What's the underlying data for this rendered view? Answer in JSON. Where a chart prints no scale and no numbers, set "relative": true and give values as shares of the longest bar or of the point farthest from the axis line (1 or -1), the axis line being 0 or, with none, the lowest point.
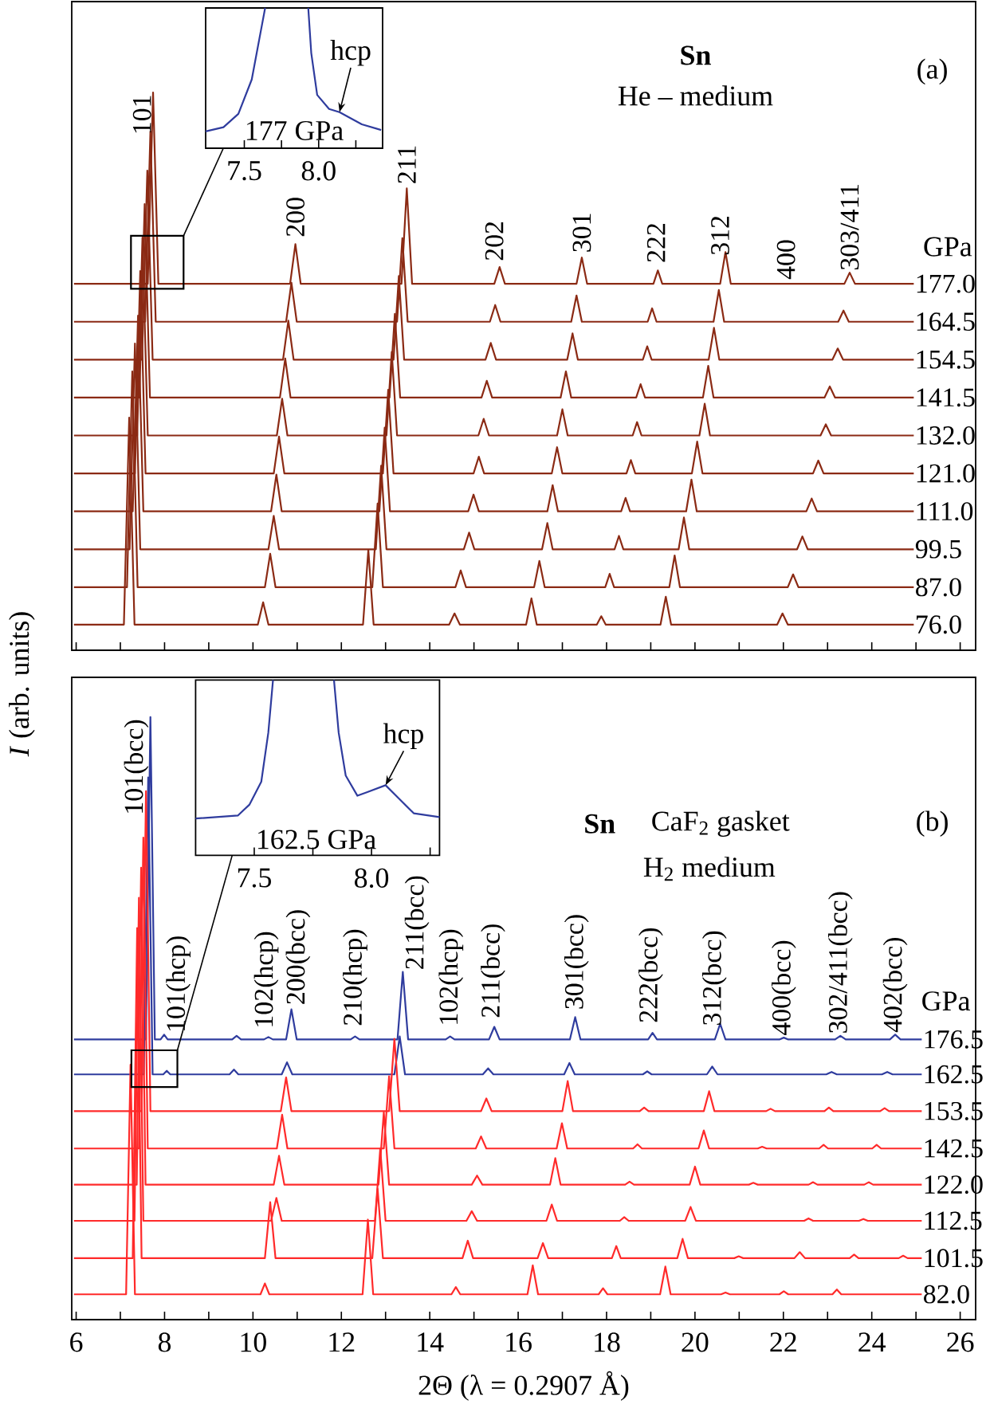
{
  "chart_data": [
    {
      "type": "line",
      "title": "Sn",
      "subtitle": "He – medium",
      "relative": true,
      "xlim": [
        5.9,
        26.35
      ],
      "xticks": [
        6,
        {
          "value": 7,
          "label": null
        },
        8,
        {
          "value": 9,
          "label": null
        },
        10,
        {
          "value": 11,
          "label": null
        },
        12,
        {
          "value": 13,
          "label": null
        },
        14,
        {
          "value": 15,
          "label": null
        },
        16,
        {
          "value": 17,
          "label": null
        },
        18,
        {
          "value": 19,
          "label": null
        },
        20,
        {
          "value": 21,
          "label": null
        },
        22,
        {
          "value": 23,
          "label": null
        },
        24,
        {
          "value": 25,
          "label": null
        },
        26
      ],
      "tick_labels": false,
      "annotations": [
        "(a)",
        "GPa",
        {
          "text": "101",
          "x": 7.74,
          "y": 1.0
        },
        {
          "text": "200",
          "x": 10.96,
          "y": 0.737
        },
        {
          "text": "211",
          "x": 13.48,
          "y": 0.832
        },
        {
          "text": "202",
          "x": 15.46,
          "y": 0.694
        },
        {
          "text": "301",
          "x": 17.44,
          "y": 0.709
        },
        {
          "text": "222",
          "x": 19.12,
          "y": 0.691
        },
        {
          "text": "312",
          "x": 20.57,
          "y": 0.704
        },
        {
          "text": "400",
          "x": 22.06,
          "y": 0.661
        },
        {
          "text": "303/411",
          "x": 23.5,
          "y": 0.677
        }
      ],
      "series": [
        {
          "name": "177.0",
          "color": "#8b2a14",
          "x": [
            5.95,
            7.62,
            7.74,
            7.86,
            10.84,
            10.96,
            11.08,
            13.36,
            13.48,
            13.6,
            15.46,
            15.58,
            15.7,
            17.32,
            17.44,
            17.56,
            19.06,
            19.16,
            19.26,
            20.57,
            20.69,
            20.81,
            23.38,
            23.5,
            23.62,
            24.95
          ],
          "values": [
            0.657,
            0.657,
            1.0,
            0.657,
            0.657,
            0.728,
            0.657,
            0.657,
            0.828,
            0.657,
            0.657,
            0.687,
            0.657,
            0.657,
            0.704,
            0.657,
            0.657,
            0.681,
            0.657,
            0.657,
            0.714,
            0.657,
            0.657,
            0.677,
            0.657,
            0.657
          ]
        },
        {
          "name": "164.5",
          "color": "#8b2a14",
          "x": [
            5.95,
            7.56,
            7.68,
            7.8,
            10.75,
            10.87,
            10.99,
            13.26,
            13.38,
            13.5,
            15.36,
            15.48,
            15.6,
            17.2,
            17.32,
            17.44,
            18.93,
            19.03,
            19.13,
            20.42,
            20.54,
            20.66,
            23.24,
            23.36,
            23.48,
            24.95
          ],
          "values": [
            0.589,
            0.589,
            0.93,
            0.589,
            0.589,
            0.659,
            0.589,
            0.589,
            0.739,
            0.589,
            0.589,
            0.619,
            0.589,
            0.589,
            0.636,
            0.589,
            0.589,
            0.613,
            0.589,
            0.589,
            0.646,
            0.589,
            0.589,
            0.609,
            0.589,
            0.589
          ]
        },
        {
          "name": "154.5",
          "color": "#8b2a14",
          "x": [
            5.95,
            7.49,
            7.61,
            7.73,
            10.68,
            10.8,
            10.92,
            13.18,
            13.3,
            13.42,
            15.26,
            15.38,
            15.5,
            17.11,
            17.23,
            17.35,
            18.82,
            18.92,
            19.02,
            20.31,
            20.43,
            20.55,
            23.11,
            23.23,
            23.35,
            24.95
          ],
          "values": [
            0.521,
            0.521,
            0.86,
            0.521,
            0.521,
            0.591,
            0.521,
            0.521,
            0.671,
            0.521,
            0.521,
            0.551,
            0.521,
            0.521,
            0.568,
            0.521,
            0.521,
            0.545,
            0.521,
            0.521,
            0.578,
            0.521,
            0.521,
            0.541,
            0.521,
            0.521
          ]
        },
        {
          "name": "141.5",
          "color": "#8b2a14",
          "x": [
            5.95,
            7.43,
            7.55,
            7.67,
            10.61,
            10.73,
            10.85,
            13.09,
            13.21,
            13.33,
            15.17,
            15.29,
            15.41,
            16.96,
            17.08,
            17.2,
            18.67,
            18.77,
            18.87,
            20.18,
            20.3,
            20.42,
            22.93,
            23.05,
            23.17,
            24.95
          ],
          "values": [
            0.453,
            0.453,
            0.8,
            0.453,
            0.453,
            0.523,
            0.453,
            0.453,
            0.603,
            0.453,
            0.453,
            0.483,
            0.453,
            0.453,
            0.5,
            0.453,
            0.453,
            0.477,
            0.453,
            0.453,
            0.51,
            0.453,
            0.453,
            0.473,
            0.453,
            0.453
          ]
        },
        {
          "name": "132.0",
          "color": "#8b2a14",
          "x": [
            5.95,
            7.38,
            7.5,
            7.62,
            10.54,
            10.66,
            10.78,
            13.02,
            13.14,
            13.26,
            15.1,
            15.22,
            15.34,
            16.88,
            17.0,
            17.12,
            18.59,
            18.69,
            18.79,
            20.1,
            20.22,
            20.34,
            22.84,
            22.96,
            23.08,
            24.95
          ],
          "values": [
            0.385,
            0.385,
            0.74,
            0.385,
            0.385,
            0.451,
            0.385,
            0.385,
            0.535,
            0.385,
            0.385,
            0.415,
            0.385,
            0.385,
            0.432,
            0.385,
            0.385,
            0.409,
            0.385,
            0.385,
            0.442,
            0.385,
            0.385,
            0.405,
            0.385,
            0.385
          ]
        },
        {
          "name": "121.0",
          "color": "#8b2a14",
          "x": [
            5.95,
            7.33,
            7.45,
            7.57,
            10.47,
            10.59,
            10.71,
            12.94,
            13.06,
            13.18,
            14.99,
            15.11,
            15.23,
            16.76,
            16.88,
            17.0,
            18.45,
            18.55,
            18.65,
            19.93,
            20.05,
            20.17,
            22.67,
            22.79,
            22.91,
            24.95
          ],
          "values": [
            0.317,
            0.317,
            0.68,
            0.317,
            0.317,
            0.383,
            0.317,
            0.317,
            0.467,
            0.317,
            0.317,
            0.347,
            0.317,
            0.317,
            0.364,
            0.317,
            0.317,
            0.341,
            0.317,
            0.317,
            0.374,
            0.317,
            0.317,
            0.34,
            0.317,
            0.317
          ]
        },
        {
          "name": "111.0",
          "color": "#8b2a14",
          "x": [
            5.95,
            7.28,
            7.4,
            7.52,
            10.41,
            10.53,
            10.65,
            12.86,
            12.98,
            13.1,
            14.87,
            14.99,
            15.11,
            16.66,
            16.78,
            16.9,
            18.33,
            18.43,
            18.53,
            19.8,
            19.92,
            20.04,
            22.52,
            22.64,
            22.76,
            24.95
          ],
          "values": [
            0.249,
            0.249,
            0.6,
            0.249,
            0.249,
            0.315,
            0.249,
            0.249,
            0.399,
            0.249,
            0.249,
            0.279,
            0.249,
            0.249,
            0.296,
            0.249,
            0.249,
            0.273,
            0.249,
            0.249,
            0.306,
            0.249,
            0.249,
            0.272,
            0.249,
            0.249
          ]
        },
        {
          "name": "99.5",
          "color": "#8b2a14",
          "x": [
            5.95,
            7.21,
            7.33,
            7.45,
            10.35,
            10.47,
            10.59,
            12.78,
            12.9,
            13.02,
            14.77,
            14.89,
            15.01,
            16.54,
            16.66,
            16.78,
            18.18,
            18.28,
            18.38,
            19.63,
            19.75,
            19.87,
            22.31,
            22.43,
            22.55,
            24.95
          ],
          "values": [
            0.181,
            0.181,
            0.55,
            0.181,
            0.181,
            0.241,
            0.181,
            0.181,
            0.331,
            0.181,
            0.181,
            0.211,
            0.181,
            0.181,
            0.228,
            0.181,
            0.181,
            0.205,
            0.181,
            0.181,
            0.238,
            0.181,
            0.181,
            0.204,
            0.181,
            0.181
          ]
        },
        {
          "name": "87.0",
          "color": "#8b2a14",
          "x": [
            5.95,
            7.15,
            7.27,
            7.39,
            10.27,
            10.39,
            10.51,
            12.7,
            12.82,
            12.94,
            14.58,
            14.7,
            14.82,
            16.36,
            16.48,
            16.6,
            17.97,
            18.07,
            18.17,
            19.42,
            19.54,
            19.66,
            22.1,
            22.22,
            22.34,
            24.95
          ],
          "values": [
            0.113,
            0.113,
            0.5,
            0.113,
            0.113,
            0.173,
            0.113,
            0.113,
            0.263,
            0.113,
            0.113,
            0.143,
            0.113,
            0.113,
            0.16,
            0.113,
            0.113,
            0.137,
            0.113,
            0.113,
            0.17,
            0.113,
            0.113,
            0.136,
            0.113,
            0.113
          ]
        },
        {
          "name": "76.0",
          "color": "#8b2a14",
          "x": [
            5.95,
            7.08,
            7.2,
            7.32,
            10.11,
            10.23,
            10.35,
            12.49,
            12.61,
            12.73,
            14.44,
            14.56,
            14.68,
            16.18,
            16.3,
            16.42,
            17.78,
            17.88,
            17.98,
            19.22,
            19.34,
            19.46,
            21.86,
            21.98,
            22.1,
            24.95
          ],
          "values": [
            0.046,
            0.046,
            0.417,
            0.046,
            0.046,
            0.086,
            0.046,
            0.046,
            0.18,
            0.046,
            0.046,
            0.066,
            0.046,
            0.046,
            0.093,
            0.046,
            0.046,
            0.061,
            0.046,
            0.046,
            0.096,
            0.046,
            0.046,
            0.066,
            0.046,
            0.046
          ]
        }
      ]
    },
    {
      "type": "line",
      "relative": true,
      "xlim": [
        7.24,
        8.43
      ],
      "xticks": [
        7.5,
        {
          "value": 7.75,
          "label": null
        },
        {
          "value": 8,
          "label": "8.0"
        },
        {
          "value": 8.25,
          "label": null
        }
      ],
      "tick_labels": "x",
      "annotations": [
        "177 GPa",
        {
          "text": "hcp",
          "x": 8.14,
          "y": 0.257
        }
      ],
      "series": [
        {
          "color": "#2f3c9e",
          "x": [
            7.24,
            7.36,
            7.46,
            7.55,
            7.61,
            7.64,
            7.78,
            7.93,
            7.95,
            7.99,
            8.07,
            8.14,
            8.29,
            8.42
          ],
          "values": [
            0.12,
            0.15,
            0.245,
            0.49,
            0.83,
            1.0,
            null,
            1.0,
            0.68,
            0.38,
            0.28,
            0.257,
            0.17,
            0.13
          ]
        }
      ]
    },
    {
      "type": "line",
      "title": "Sn",
      "subtitle": "CaF$_{2}$ gasket",
      "xlabel": "2Θ  (λ = 0.2907 Å)",
      "ylabel": "*I* (arb. units)",
      "relative": true,
      "xlim": [
        5.9,
        26.35
      ],
      "xticks": [
        6,
        {
          "value": 7,
          "label": null
        },
        8,
        {
          "value": 9,
          "label": null
        },
        10,
        {
          "value": 11,
          "label": null
        },
        12,
        {
          "value": 13,
          "label": null
        },
        14,
        {
          "value": 15,
          "label": null
        },
        16,
        {
          "value": 17,
          "label": null
        },
        18,
        {
          "value": 19,
          "label": null
        },
        20,
        {
          "value": 21,
          "label": null
        },
        22,
        {
          "value": 23,
          "label": null
        },
        24,
        {
          "value": 25,
          "label": null
        },
        26
      ],
      "tick_labels": "x",
      "annotations": [
        "H$_{2}$ medium",
        "(b)",
        "GPa",
        {
          "text": "101(bcc)",
          "x": 7.68,
          "y": 1.0
        },
        {
          "text": "101(hcp)",
          "x": 7.99,
          "y": 0.473
        },
        {
          "text": "102(hcp)",
          "x": 10.3,
          "y": 0.48
        },
        {
          "text": "200(bcc)",
          "x": 11.02,
          "y": 0.519
        },
        {
          "text": "210(hcp)",
          "x": 12.31,
          "y": 0.484
        },
        {
          "text": "211(bcc)",
          "x": 13.39,
          "y": 0.577
        },
        {
          "text": "102(hcp)",
          "x": 14.48,
          "y": 0.484
        },
        {
          "text": "211(bcc)",
          "x": 15.43,
          "y": 0.497
        },
        {
          "text": "301(bcc)",
          "x": 17.32,
          "y": 0.511
        },
        {
          "text": "222(bcc)",
          "x": 19.0,
          "y": 0.489
        },
        {
          "text": "312(bcc)",
          "x": 20.44,
          "y": 0.484
        },
        {
          "text": "400(bcc)",
          "x": 22.01,
          "y": 0.468
        },
        {
          "text": "302/411(bcc)",
          "x": 23.29,
          "y": 0.471
        },
        {
          "text": "402(bcc)",
          "x": 24.53,
          "y": 0.473
        }
      ],
      "series": [
        {
          "name": "176.5",
          "color": "#2f3c9e",
          "x": [
            5.95,
            7.58,
            7.68,
            7.78,
            7.91,
            7.99,
            8.07,
            9.53,
            9.63,
            9.73,
            10.25,
            10.35,
            10.45,
            10.75,
            10.87,
            10.99,
            12.21,
            12.31,
            12.41,
            13.27,
            13.39,
            13.51,
            14.36,
            14.46,
            14.56,
            15.34,
            15.46,
            15.58,
            17.17,
            17.29,
            17.41,
            18.94,
            19.04,
            19.14,
            20.45,
            20.57,
            20.69,
            21.91,
            22.01,
            22.11,
            23.17,
            23.29,
            23.41,
            24.41,
            24.53,
            24.65,
            25.13
          ],
          "values": [
            0.465,
            0.465,
            1.0,
            0.465,
            0.465,
            0.473,
            0.465,
            0.465,
            0.471,
            0.465,
            0.465,
            0.469,
            0.465,
            0.465,
            0.515,
            0.465,
            0.465,
            0.47,
            0.465,
            0.465,
            0.577,
            0.465,
            0.465,
            0.47,
            0.465,
            0.465,
            0.486,
            0.465,
            0.465,
            0.502,
            0.465,
            0.465,
            0.476,
            0.465,
            0.465,
            0.491,
            0.465,
            0.465,
            0.468,
            0.465,
            0.465,
            0.471,
            0.465,
            0.465,
            0.473,
            0.465,
            0.465
          ]
        },
        {
          "name": "162.5",
          "color": "#2f3c9e",
          "x": [
            5.95,
            7.53,
            7.63,
            7.73,
            7.97,
            8.05,
            8.13,
            9.47,
            9.57,
            9.67,
            10.65,
            10.77,
            10.89,
            13.2,
            13.32,
            13.44,
            15.2,
            15.32,
            15.44,
            17.04,
            17.16,
            17.28,
            18.82,
            18.92,
            19.02,
            20.27,
            20.39,
            20.51,
            22.97,
            23.09,
            23.21,
            24.23,
            24.35,
            24.47,
            25.13
          ],
          "values": [
            0.407,
            0.407,
            0.9,
            0.407,
            0.407,
            0.413,
            0.407,
            0.407,
            0.415,
            0.407,
            0.407,
            0.427,
            0.407,
            0.407,
            0.47,
            0.407,
            0.407,
            0.417,
            0.407,
            0.407,
            0.426,
            0.407,
            0.407,
            0.412,
            0.407,
            0.407,
            0.42,
            0.407,
            0.407,
            0.411,
            0.407,
            0.407,
            0.411,
            0.407,
            0.407
          ]
        },
        {
          "name": "153.5",
          "color": "#ff2a2a",
          "x": [
            5.95,
            7.48,
            7.58,
            7.68,
            10.63,
            10.75,
            10.87,
            13.08,
            13.2,
            13.32,
            15.16,
            15.28,
            15.4,
            17.0,
            17.12,
            17.24,
            18.75,
            18.85,
            18.95,
            20.2,
            20.32,
            20.44,
            21.61,
            21.71,
            21.81,
            22.93,
            23.03,
            23.13,
            24.19,
            24.29,
            24.39,
            25.13
          ],
          "values": [
            0.346,
            0.346,
            0.877,
            0.346,
            0.346,
            0.402,
            0.346,
            0.346,
            0.466,
            0.346,
            0.346,
            0.367,
            0.346,
            0.346,
            0.396,
            0.346,
            0.346,
            0.352,
            0.346,
            0.346,
            0.379,
            0.346,
            0.346,
            0.35,
            0.346,
            0.346,
            0.352,
            0.346,
            0.346,
            0.351,
            0.346,
            0.346
          ]
        },
        {
          "name": "142.5",
          "color": "#ff2a2a",
          "x": [
            5.95,
            7.42,
            7.52,
            7.62,
            10.54,
            10.66,
            10.78,
            12.96,
            13.08,
            13.2,
            15.04,
            15.16,
            15.28,
            16.87,
            16.99,
            17.11,
            18.6,
            18.7,
            18.8,
            20.08,
            20.2,
            20.32,
            21.42,
            21.52,
            21.62,
            22.81,
            22.91,
            23.01,
            24.01,
            24.11,
            24.21,
            25.13
          ],
          "values": [
            0.284,
            0.284,
            0.8,
            0.284,
            0.284,
            0.34,
            0.284,
            0.284,
            0.404,
            0.284,
            0.284,
            0.304,
            0.284,
            0.284,
            0.326,
            0.284,
            0.284,
            0.291,
            0.284,
            0.284,
            0.314,
            0.284,
            0.284,
            0.287,
            0.284,
            0.284,
            0.29,
            0.284,
            0.284,
            0.29,
            0.284,
            0.284
          ]
        },
        {
          "name": "122.0",
          "color": "#ff2a2a",
          "x": [
            5.95,
            7.37,
            7.47,
            7.57,
            10.47,
            10.59,
            10.71,
            12.84,
            12.96,
            13.08,
            14.95,
            15.07,
            15.19,
            16.72,
            16.84,
            16.96,
            18.42,
            18.52,
            18.62,
            19.88,
            20.0,
            20.12,
            21.22,
            21.32,
            21.42,
            22.57,
            22.67,
            22.77,
            23.83,
            23.93,
            24.03,
            25.13
          ],
          "values": [
            0.224,
            0.224,
            0.75,
            0.224,
            0.224,
            0.272,
            0.224,
            0.224,
            0.344,
            0.224,
            0.224,
            0.239,
            0.224,
            0.224,
            0.268,
            0.224,
            0.224,
            0.229,
            0.224,
            0.224,
            0.254,
            0.224,
            0.224,
            0.227,
            0.224,
            0.224,
            0.228,
            0.224,
            0.224,
            0.228,
            0.224,
            0.224
          ]
        },
        {
          "name": "112.5",
          "color": "#ff2a2a",
          "x": [
            5.95,
            7.32,
            7.42,
            7.52,
            10.41,
            10.53,
            10.65,
            12.76,
            12.88,
            13.0,
            14.83,
            14.95,
            15.07,
            16.64,
            16.76,
            16.88,
            18.3,
            18.4,
            18.5,
            19.78,
            19.9,
            20.02,
            22.47,
            22.57,
            22.67,
            23.71,
            23.81,
            23.91,
            25.13
          ],
          "values": [
            0.164,
            0.164,
            0.7,
            0.164,
            0.164,
            0.202,
            0.164,
            0.164,
            0.284,
            0.164,
            0.164,
            0.18,
            0.164,
            0.164,
            0.191,
            0.164,
            0.164,
            0.17,
            0.164,
            0.164,
            0.187,
            0.164,
            0.164,
            0.168,
            0.164,
            0.164,
            0.167,
            0.164,
            0.164
          ]
        },
        {
          "name": "101.5",
          "color": "#ff2a2a",
          "x": [
            5.95,
            7.28,
            7.38,
            7.48,
            10.27,
            10.39,
            10.51,
            12.7,
            12.82,
            12.94,
            14.74,
            14.86,
            14.98,
            16.44,
            16.56,
            16.68,
            18.12,
            18.22,
            18.32,
            19.6,
            19.72,
            19.84,
            20.89,
            20.99,
            21.09,
            22.25,
            22.37,
            22.49,
            23.5,
            23.6,
            23.7,
            24.61,
            24.71,
            24.81,
            25.13
          ],
          "values": [
            0.102,
            0.102,
            0.65,
            0.102,
            0.102,
            0.195,
            0.102,
            0.102,
            0.217,
            0.102,
            0.102,
            0.131,
            0.102,
            0.102,
            0.127,
            0.102,
            0.102,
            0.122,
            0.102,
            0.102,
            0.134,
            0.102,
            0.102,
            0.105,
            0.102,
            0.102,
            0.112,
            0.102,
            0.102,
            0.108,
            0.102,
            0.102,
            0.106,
            0.102,
            0.102
          ]
        },
        {
          "name": "82.0",
          "color": "#ff2a2a",
          "x": [
            5.95,
            7.13,
            7.23,
            7.33,
            10.17,
            10.27,
            10.37,
            12.48,
            12.6,
            12.72,
            14.49,
            14.59,
            14.69,
            16.21,
            16.33,
            16.45,
            17.82,
            17.92,
            18.02,
            19.21,
            19.33,
            19.45,
            20.59,
            20.69,
            20.79,
            21.91,
            22.01,
            22.11,
            23.11,
            23.21,
            23.31,
            25.13
          ],
          "values": [
            0.042,
            0.042,
            0.423,
            0.042,
            0.042,
            0.06,
            0.042,
            0.042,
            0.166,
            0.042,
            0.042,
            0.054,
            0.042,
            0.042,
            0.09,
            0.042,
            0.042,
            0.052,
            0.042,
            0.042,
            0.088,
            0.042,
            0.042,
            0.045,
            0.042,
            0.042,
            0.047,
            0.042,
            0.042,
            0.05,
            0.042,
            0.042
          ]
        }
      ]
    },
    {
      "type": "line",
      "relative": true,
      "xlim": [
        7.25,
        8.29
      ],
      "xticks": [
        7.5,
        {
          "value": 7.75,
          "label": null
        },
        {
          "value": 8,
          "label": "8.0"
        },
        {
          "value": 8.25,
          "label": null
        }
      ],
      "tick_labels": "x",
      "annotations": [
        "162.5 GPa",
        {
          "text": "hcp",
          "x": 8.06,
          "y": 0.4
        }
      ],
      "series": [
        {
          "color": "#2f3c9e",
          "x": [
            7.25,
            7.43,
            7.48,
            7.53,
            7.56,
            7.58,
            7.71,
            7.84,
            7.86,
            7.89,
            7.94,
            7.98,
            8.06,
            8.12,
            8.18,
            8.29
          ],
          "values": [
            0.21,
            0.227,
            0.29,
            0.42,
            0.7,
            1.0,
            null,
            1.0,
            0.7,
            0.455,
            0.34,
            0.36,
            0.4,
            0.32,
            0.24,
            0.218
          ]
        }
      ]
    }
  ]
}
